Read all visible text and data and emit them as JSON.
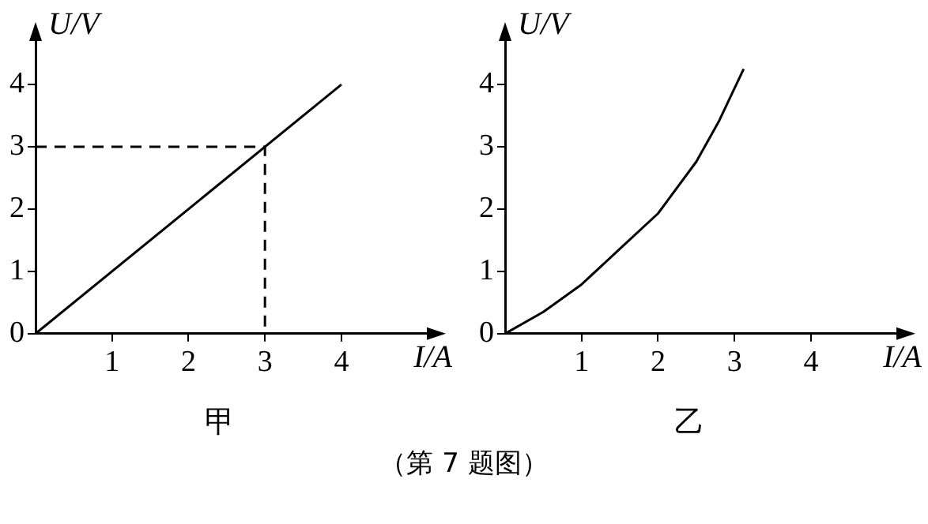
{
  "chart_data": [
    {
      "type": "line",
      "title": "甲",
      "xlabel": "I/A",
      "ylabel": "U/V",
      "xlim": [
        0,
        5.2
      ],
      "ylim": [
        0,
        4.8
      ],
      "xticks": [
        1,
        2,
        3,
        4
      ],
      "yticks": [
        0,
        1,
        2,
        3,
        4
      ],
      "grid": false,
      "legend": false,
      "marker": "none",
      "annotations": [
        "（第 7 题图）"
      ],
      "series": [
        {
          "color": "#000000",
          "x": [
            0,
            4
          ],
          "values": [
            0,
            4
          ]
        },
        {
          "color": "#000000",
          "x": [
            0,
            3,
            3
          ],
          "values": [
            3,
            3,
            0
          ],
          "line_style": "dashed"
        }
      ]
    },
    {
      "type": "line",
      "title": "乙",
      "xlabel": "I/A",
      "ylabel": "U/V",
      "xlim": [
        0,
        5.2
      ],
      "ylim": [
        0,
        4.8
      ],
      "xticks": [
        1,
        2,
        3,
        4
      ],
      "yticks": [
        0,
        1,
        2,
        3,
        4
      ],
      "grid": false,
      "legend": false,
      "marker": "none",
      "series": [
        {
          "color": "#000000",
          "x": [
            0,
            0.5,
            1,
            1.5,
            2,
            2.5,
            2.8,
            3.12
          ],
          "values": [
            0,
            0.35,
            0.79,
            1.36,
            1.93,
            2.76,
            3.42,
            4.25
          ]
        }
      ]
    }
  ]
}
